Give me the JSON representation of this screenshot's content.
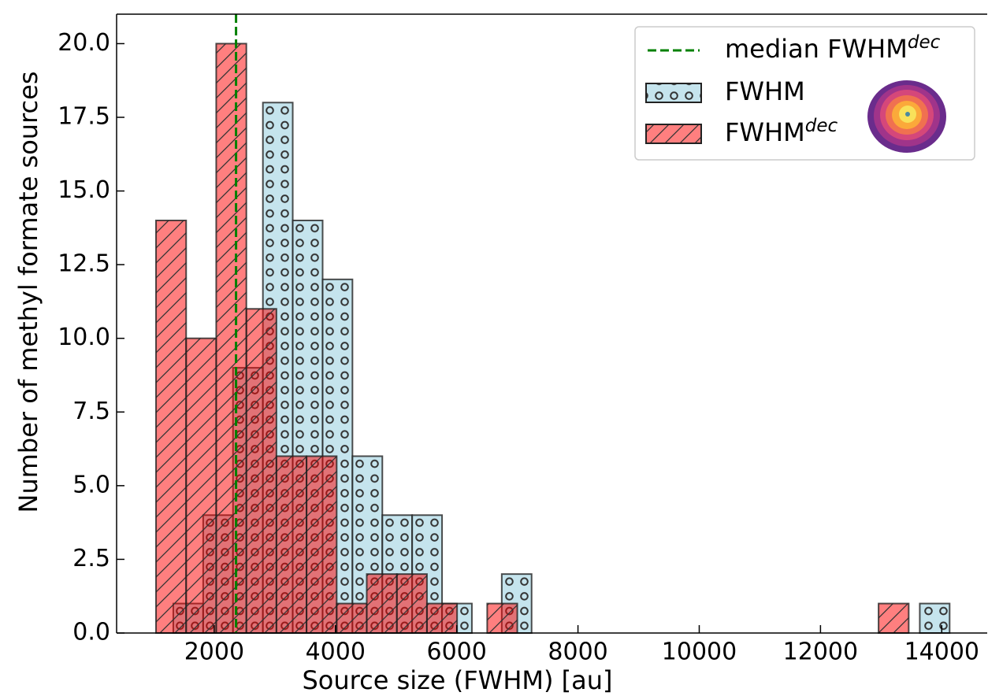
{
  "chart_data": {
    "type": "histogram",
    "xlabel": "Source size (FWHM) [au]",
    "ylabel": "Number of methyl formate sources",
    "xlim": [
      390,
      14750
    ],
    "ylim": [
      0,
      21
    ],
    "xticks": [
      2000,
      4000,
      6000,
      8000,
      10000,
      12000,
      14000
    ],
    "yticks": [
      {
        "value": 0,
        "label": "0.0"
      },
      2.5,
      {
        "value": 5,
        "label": "5.0"
      },
      7.5,
      {
        "value": 10,
        "label": "10.0"
      },
      12.5,
      {
        "value": 15,
        "label": "15.0"
      },
      17.5,
      {
        "value": 20,
        "label": "20.0"
      }
    ],
    "legend": "upper right",
    "median_line": {
      "x": 2360,
      "label": "median FWHM",
      "label_sup": "dec",
      "color": "#008000"
    },
    "series": [
      {
        "name": "FWHM",
        "color": "#add8e6",
        "hatch": "circles",
        "bins": [
          1325,
          1818,
          2310,
          2803,
          3295,
          3788,
          4280,
          4773,
          5265,
          5758,
          6250,
          6743,
          7235,
          7728,
          8220,
          8713,
          9205,
          9698,
          10190,
          10683,
          11175,
          11668,
          12160,
          12653,
          13145,
          13638,
          14130
        ],
        "values": [
          1,
          4,
          9,
          18,
          14,
          12,
          6,
          4,
          4,
          1,
          0,
          2,
          0,
          0,
          0,
          0,
          0,
          0,
          0,
          0,
          0,
          0,
          0,
          0,
          0,
          1
        ]
      },
      {
        "name": "FWHM",
        "name_sup": "dec",
        "color": "#ff0000",
        "hatch": "diagonal",
        "bins": [
          1040,
          1537,
          2033,
          2530,
          3026,
          3523,
          4020,
          4516,
          5013,
          5509,
          6006,
          6503,
          6999,
          7496,
          7992,
          8489,
          8986,
          9482,
          9979,
          10475,
          10972,
          11469,
          11965,
          12462,
          12958,
          13455
        ],
        "values": [
          14,
          10,
          20,
          11,
          6,
          6,
          1,
          2,
          2,
          1,
          0,
          1,
          0,
          0,
          0,
          0,
          0,
          0,
          0,
          0,
          0,
          0,
          0,
          0,
          1
        ]
      }
    ]
  }
}
